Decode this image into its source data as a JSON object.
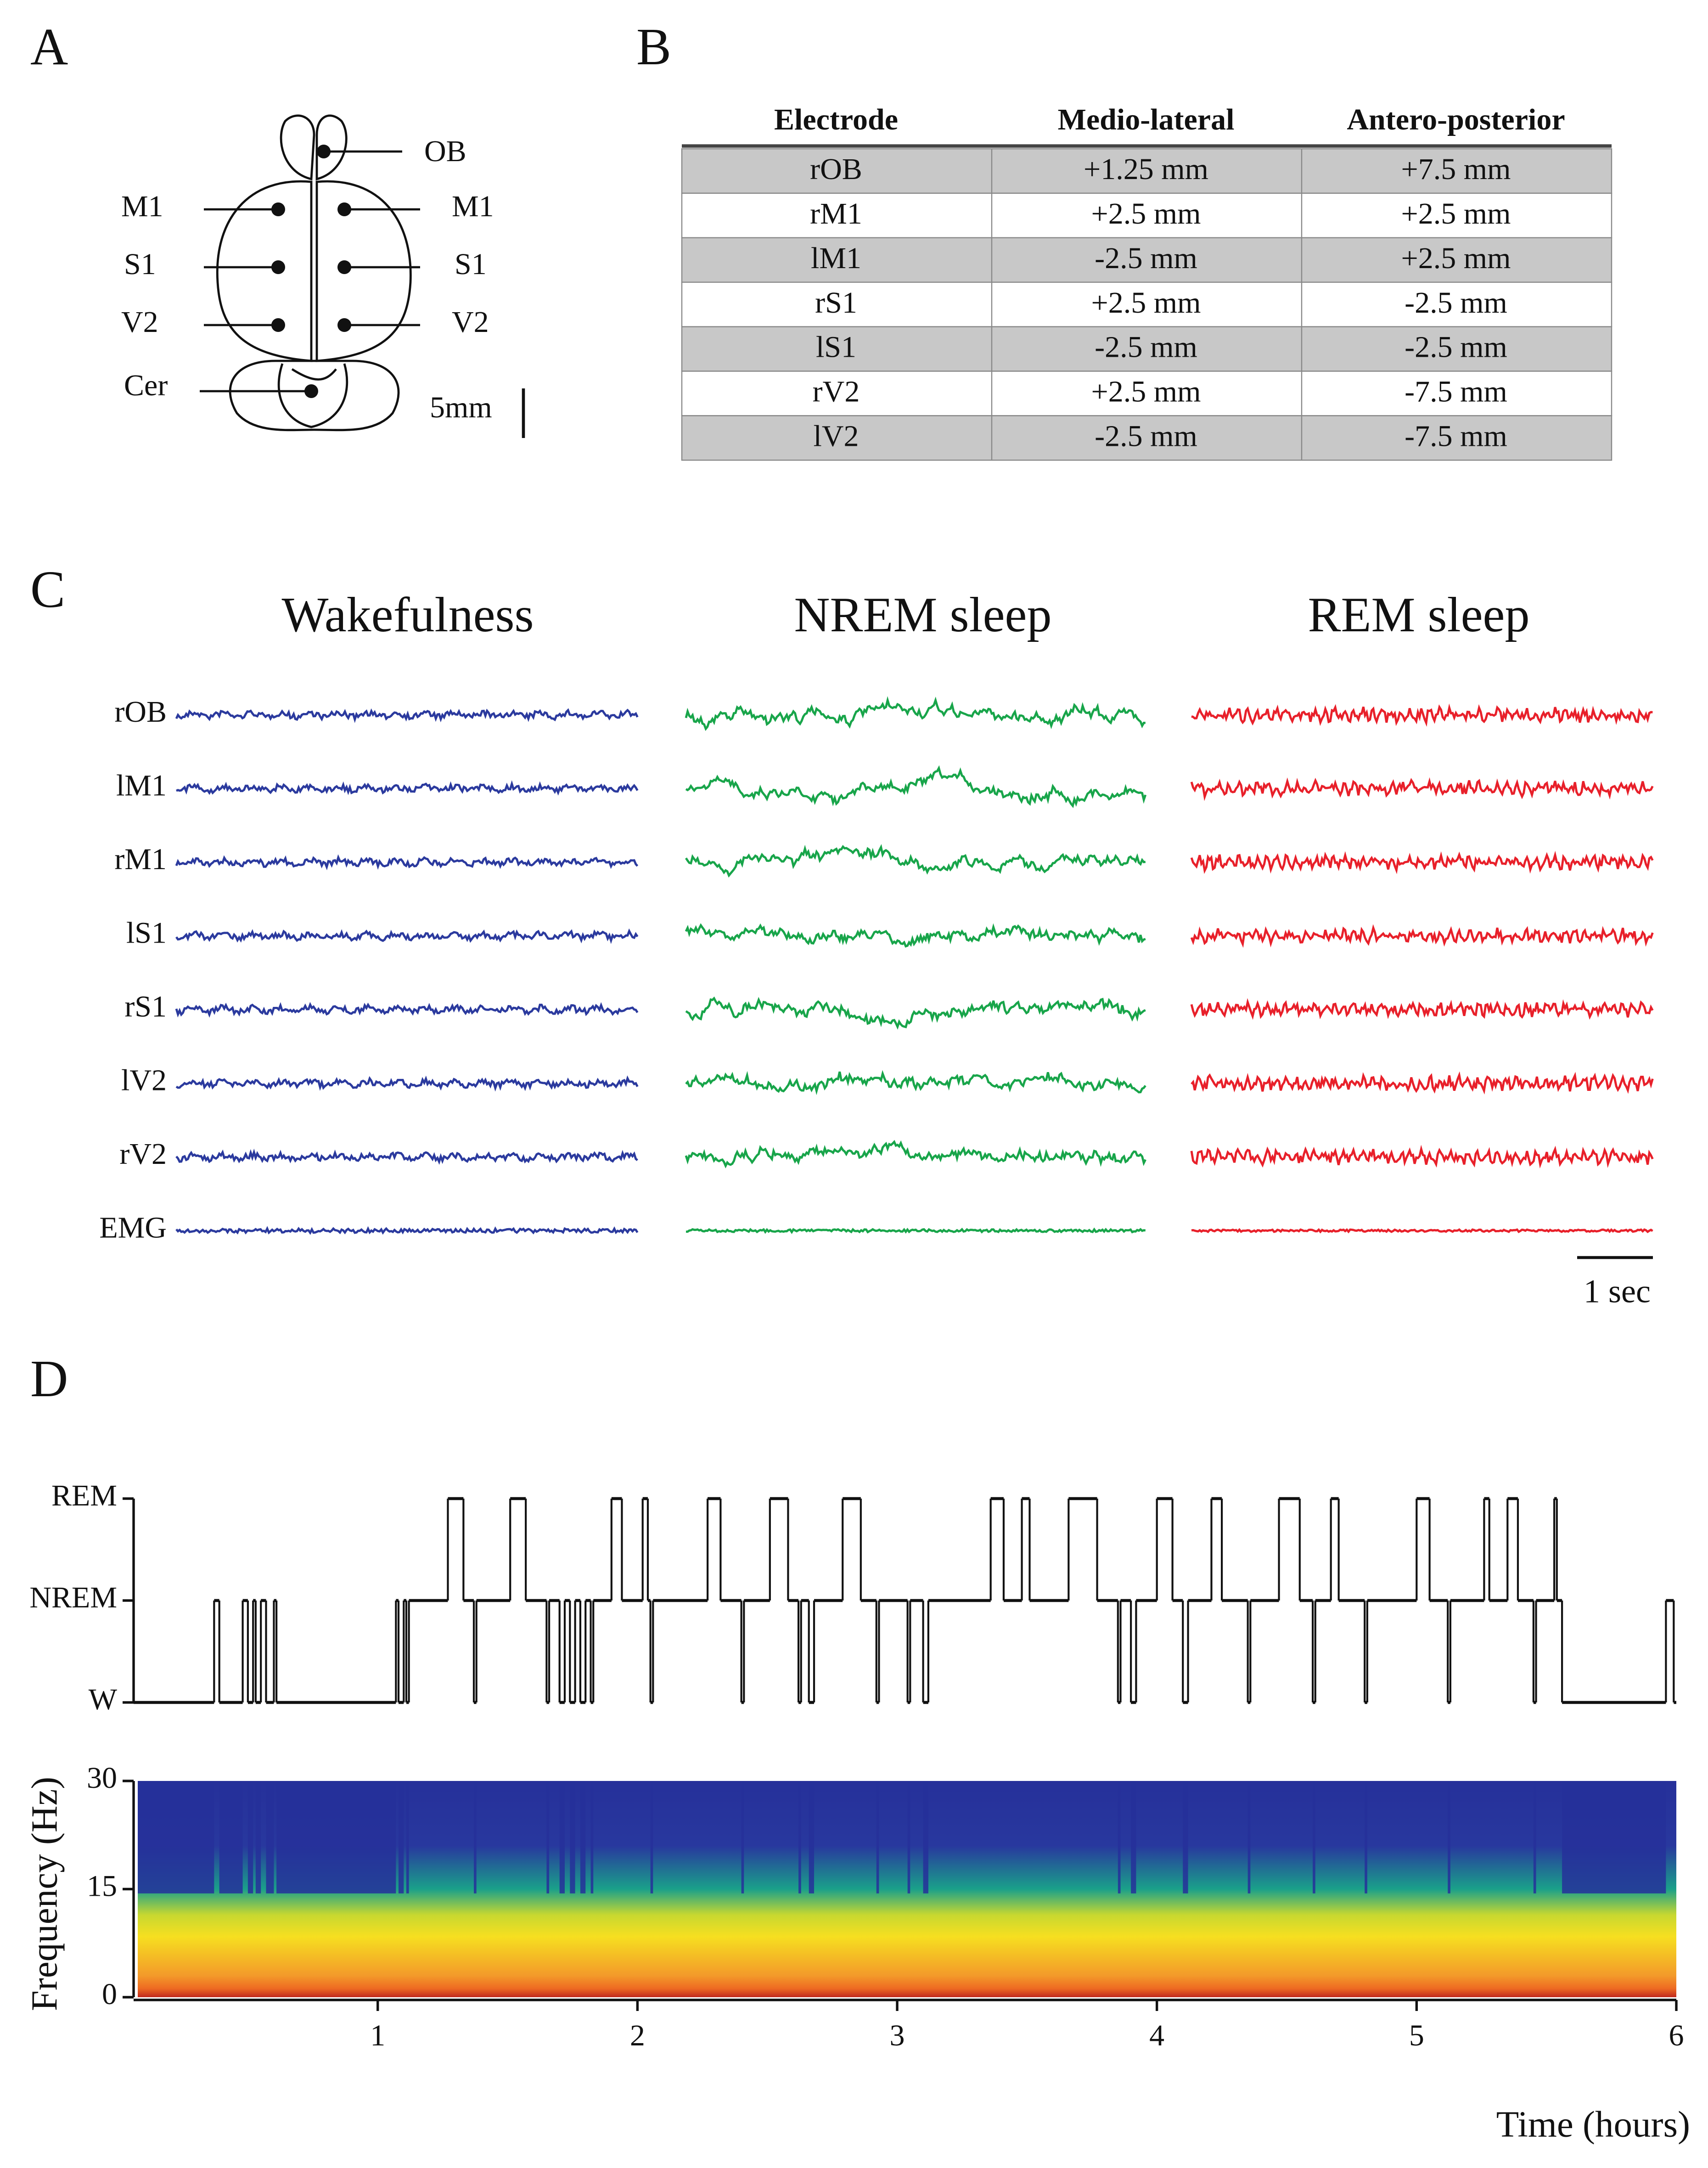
{
  "panels": {
    "a": "A",
    "b": "B",
    "c": "C",
    "d": "D"
  },
  "brain": {
    "ob": "OB",
    "m1_left": "M1",
    "m1_right": "M1",
    "s1_left": "S1",
    "s1_right": "S1",
    "v2_left": "V2",
    "v2_right": "V2",
    "cer": "Cer",
    "scale_bar": "5mm"
  },
  "table": {
    "header": [
      "Electrode",
      "Medio-lateral",
      "Antero-posterior"
    ],
    "rows": [
      [
        "rOB",
        "+1.25 mm",
        "+7.5 mm"
      ],
      [
        "rM1",
        "+2.5 mm",
        "+2.5 mm"
      ],
      [
        "lM1",
        "-2.5 mm",
        "+2.5 mm"
      ],
      [
        "rS1",
        "+2.5 mm",
        "-2.5 mm"
      ],
      [
        "lS1",
        "-2.5 mm",
        "-2.5 mm"
      ],
      [
        "rV2",
        "+2.5 mm",
        "-7.5 mm"
      ],
      [
        "lV2",
        "-2.5 mm",
        "-7.5 mm"
      ]
    ]
  },
  "traces": {
    "titles": [
      "Wakefulness",
      "NREM sleep",
      "REM sleep"
    ],
    "channels": [
      "rOB",
      "lM1",
      "rM1",
      "lS1",
      "rS1",
      "lV2",
      "rV2",
      "EMG"
    ],
    "colors": [
      "#2b3a9e",
      "#18a54a",
      "#e8202a"
    ],
    "scale_bar": "1 sec"
  },
  "chart_data": [
    {
      "type": "step",
      "color": "#111111",
      "xlim": [
        0.06,
        6
      ],
      "ylim": [
        0,
        2
      ],
      "yticks": [
        {
          "value": 0,
          "label": "W"
        },
        {
          "value": 1,
          "label": "NREM"
        },
        {
          "value": 2,
          "label": "REM"
        }
      ],
      "x": [
        0.06,
        0.37,
        0.39,
        0.48,
        0.5,
        0.52,
        0.53,
        0.55,
        0.57,
        0.6,
        0.61,
        1.07,
        1.08,
        1.1,
        1.11,
        1.12,
        1.27,
        1.33,
        1.37,
        1.38,
        1.51,
        1.57,
        1.65,
        1.66,
        1.7,
        1.72,
        1.74,
        1.76,
        1.78,
        1.8,
        1.82,
        1.83,
        1.9,
        1.94,
        2.02,
        2.04,
        2.05,
        2.06,
        2.27,
        2.32,
        2.4,
        2.41,
        2.51,
        2.58,
        2.62,
        2.63,
        2.66,
        2.68,
        2.79,
        2.86,
        2.92,
        2.93,
        3.04,
        3.05,
        3.1,
        3.12,
        3.36,
        3.41,
        3.48,
        3.51,
        3.66,
        3.77,
        3.85,
        3.86,
        3.9,
        3.92,
        4.0,
        4.06,
        4.1,
        4.12,
        4.21,
        4.25,
        4.35,
        4.36,
        4.47,
        4.55,
        4.6,
        4.61,
        4.67,
        4.7,
        4.8,
        4.81,
        5.0,
        5.05,
        5.12,
        5.13,
        5.26,
        5.28,
        5.35,
        5.39,
        5.45,
        5.46,
        5.53,
        5.54,
        5.56,
        5.96,
        5.99
      ],
      "values": [
        0,
        1,
        0,
        1,
        0,
        1,
        0,
        1,
        0,
        1,
        0,
        1,
        0,
        1,
        0,
        1,
        2,
        1,
        0,
        1,
        2,
        1,
        0,
        1,
        0,
        1,
        0,
        1,
        0,
        1,
        0,
        1,
        2,
        1,
        2,
        1,
        0,
        1,
        2,
        1,
        0,
        1,
        2,
        1,
        0,
        1,
        0,
        1,
        2,
        1,
        0,
        1,
        0,
        1,
        0,
        1,
        2,
        1,
        2,
        1,
        2,
        1,
        0,
        1,
        0,
        1,
        2,
        1,
        0,
        1,
        2,
        1,
        0,
        1,
        2,
        1,
        0,
        1,
        2,
        1,
        0,
        1,
        2,
        1,
        0,
        1,
        2,
        1,
        2,
        1,
        0,
        1,
        2,
        1,
        0,
        1,
        0
      ]
    },
    {
      "type": "spectrogram",
      "ylabel": "Frequency (Hz)",
      "xlabel": "Time (hours)",
      "xlim": [
        0.06,
        6
      ],
      "ylim": [
        0,
        30
      ],
      "yticks": [
        0,
        15,
        30
      ],
      "xticks": [
        1,
        2,
        3,
        4,
        5,
        6
      ]
    }
  ]
}
